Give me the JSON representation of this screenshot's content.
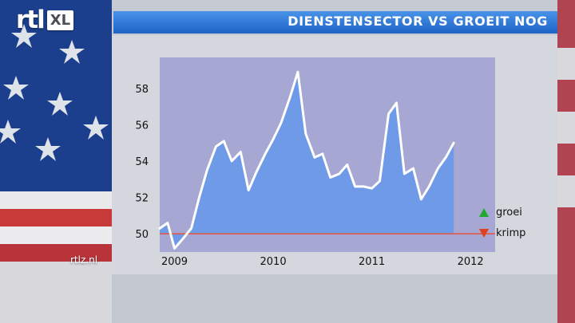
{
  "brand": {
    "logo_text": "rtl",
    "logo_badge": "XL"
  },
  "header": {
    "title": "DIENSTENSECTOR VS GROEIT NOG"
  },
  "footer": {
    "site": "rtlz.nl"
  },
  "legend": {
    "up_label": "groei",
    "down_label": "krimp"
  },
  "colors": {
    "header_blue": "#2a74d8",
    "area_fill": "#6e9ae8",
    "line": "#ffffff",
    "threshold": "#e05a4a",
    "up": "#1faa2e",
    "down": "#e0401e"
  },
  "chart_data": {
    "type": "area",
    "title": "",
    "xlabel": "",
    "ylabel": "",
    "x": [
      2008.85,
      2008.93,
      2009.0,
      2009.08,
      2009.17,
      2009.25,
      2009.33,
      2009.42,
      2009.5,
      2009.58,
      2009.67,
      2009.75,
      2009.83,
      2009.92,
      2010.0,
      2010.08,
      2010.17,
      2010.25,
      2010.33,
      2010.42,
      2010.5,
      2010.58,
      2010.67,
      2010.75,
      2010.83,
      2010.92,
      2011.0,
      2011.08,
      2011.17,
      2011.25,
      2011.33,
      2011.42,
      2011.5,
      2011.58,
      2011.67,
      2011.75,
      2011.83,
      2011.92,
      2012.0,
      2012.08,
      2012.17,
      2012.25
    ],
    "values": [
      50.3,
      50.6,
      49.2,
      49.7,
      50.3,
      52.0,
      53.5,
      54.8,
      55.1,
      54.0,
      54.5,
      52.4,
      53.4,
      54.4,
      55.2,
      56.1,
      57.5,
      58.9,
      55.5,
      54.2,
      54.4,
      53.1,
      53.3,
      53.8,
      52.6,
      52.6,
      52.5,
      52.9,
      56.6,
      57.2,
      53.3,
      53.6,
      51.9,
      52.6,
      53.6,
      54.2,
      55.0,
      null,
      null,
      null,
      null,
      null
    ],
    "threshold": 50,
    "xlim": [
      2008.85,
      2012.25
    ],
    "ylim": [
      49.0,
      59.7
    ],
    "x_ticks": [
      2009,
      2010,
      2011,
      2012
    ],
    "x_tick_labels": [
      "2009",
      "2010",
      "2011",
      "2012"
    ],
    "y_ticks": [
      50,
      52,
      54,
      56,
      58
    ],
    "y_tick_labels": [
      "50",
      "52",
      "54",
      "56",
      "58"
    ]
  }
}
